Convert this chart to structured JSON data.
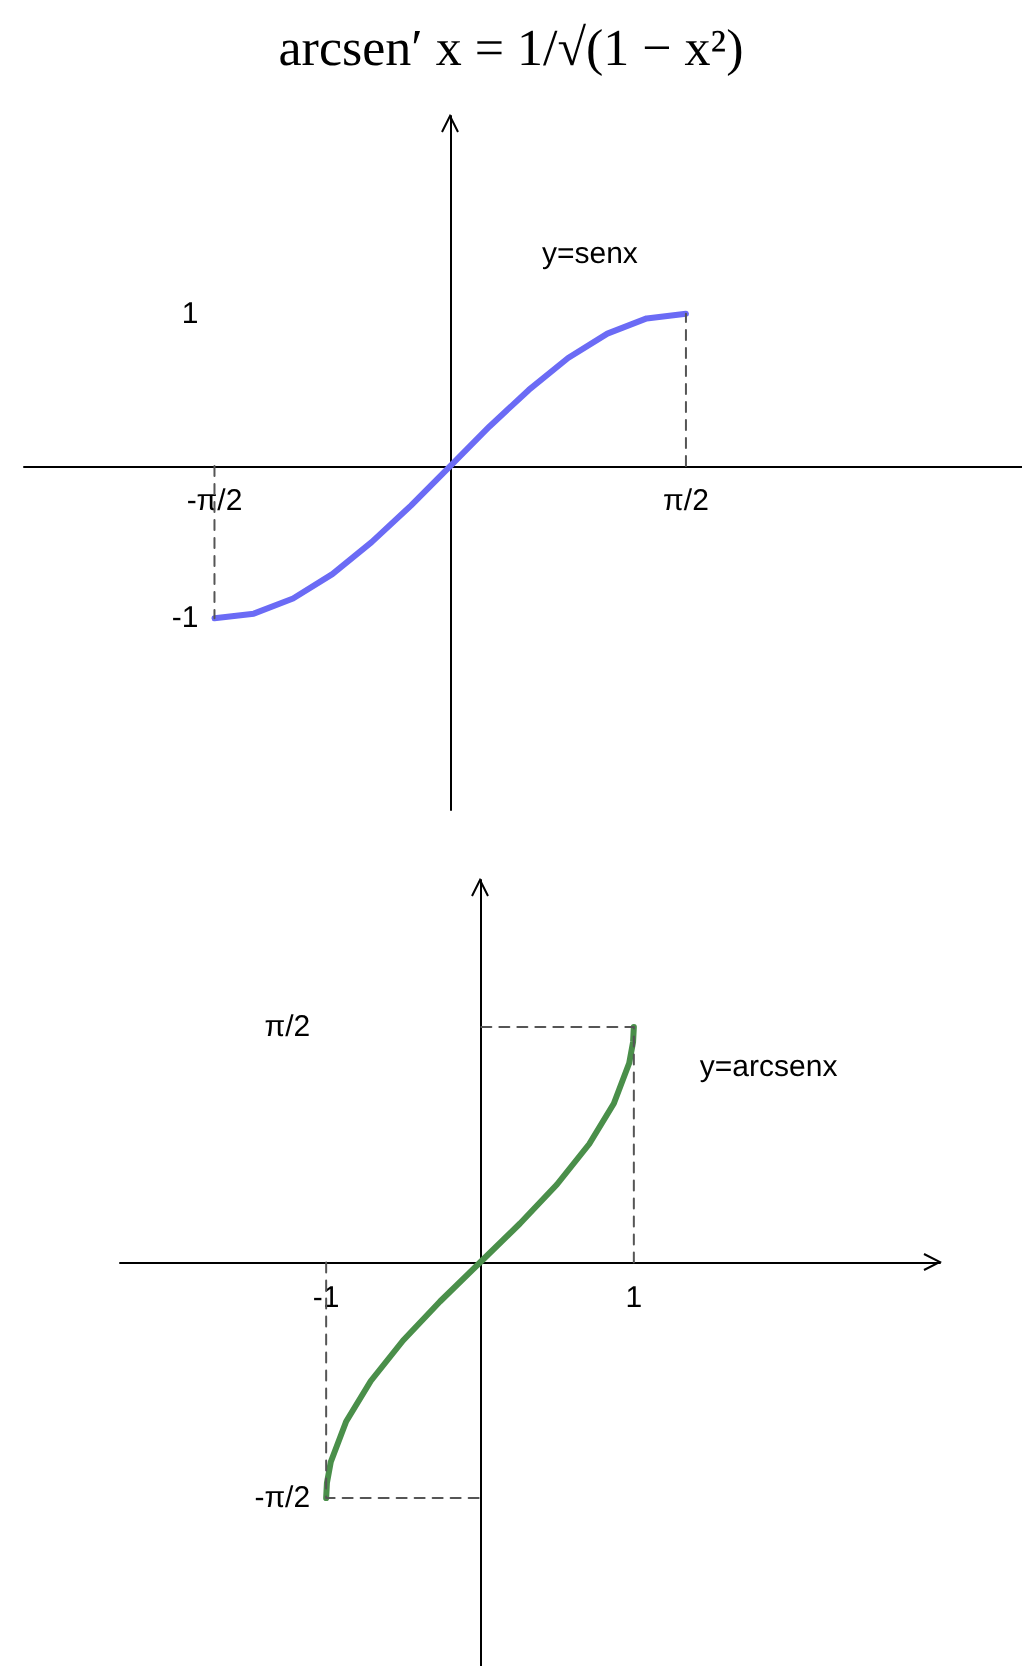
{
  "chart_data": [
    {
      "type": "line",
      "title": "arcsen′ x = 1/√(1 − x²)",
      "x": [
        -1.5708,
        -1.309,
        -1.0472,
        -0.7854,
        -0.5236,
        -0.2618,
        0,
        0.2618,
        0.5236,
        0.7854,
        1.0472,
        1.309,
        1.5708
      ],
      "series": [
        {
          "name": "y=senx",
          "color": "#6b6bf5",
          "values": [
            -1,
            -0.97,
            -0.87,
            -0.71,
            -0.5,
            -0.26,
            0,
            0.26,
            0.5,
            0.71,
            0.87,
            0.97,
            1
          ]
        },
        {
          "color": "#555555",
          "line_style": "dashed",
          "x": [
            -1.5708,
            -1.5708
          ],
          "values": [
            0,
            -1
          ]
        },
        {
          "color": "#555555",
          "line_style": "dashed",
          "x": [
            1.5708,
            1.5708
          ],
          "values": [
            0,
            1
          ]
        }
      ],
      "xlim": [
        -2.84,
        3.81
      ],
      "ylim": [
        -2.26,
        2.3
      ],
      "xticks": [
        {
          "value": -1.5708,
          "label": "-π/2"
        },
        {
          "value": 1.5708,
          "label": "π/2"
        }
      ],
      "yticks": [
        -1,
        1
      ],
      "grid": false,
      "legend": false,
      "marker": "none",
      "line_style": "solid"
    },
    {
      "type": "line",
      "x": [
        -1,
        -0.995,
        -0.97,
        -0.87,
        -0.71,
        -0.5,
        -0.26,
        0,
        0.26,
        0.5,
        0.71,
        0.87,
        0.97,
        0.995,
        1
      ],
      "series": [
        {
          "name": "y=arcsenx",
          "color": "#4a8f4a",
          "values": [
            -1.57,
            -1.47,
            -1.33,
            -1.06,
            -0.79,
            -0.52,
            -0.26,
            0,
            0.26,
            0.52,
            0.79,
            1.06,
            1.33,
            1.47,
            1.57
          ]
        },
        {
          "color": "#555555",
          "line_style": "dashed",
          "x": [
            -1,
            -1,
            0
          ],
          "values": [
            0,
            -1.57,
            -1.57
          ]
        },
        {
          "color": "#555555",
          "line_style": "dashed",
          "x": [
            1,
            1,
            0
          ],
          "values": [
            0,
            1.57,
            1.57
          ]
        }
      ],
      "xlim": [
        -2.34,
        2.99
      ],
      "ylim": [
        -2.69,
        2.55
      ],
      "xticks": [
        -1,
        1
      ],
      "yticks": [
        {
          "value": -1.5708,
          "label": "-π/2"
        },
        {
          "value": 1.5708,
          "label": "π/2"
        }
      ],
      "grid": false,
      "legend": false,
      "marker": "none",
      "line_style": "solid"
    }
  ]
}
